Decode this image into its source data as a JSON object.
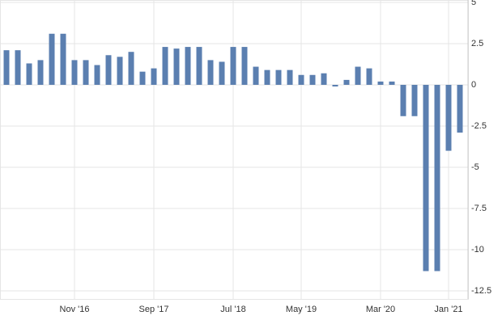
{
  "chart_data": {
    "type": "bar",
    "categories": [
      null,
      null,
      null,
      null,
      null,
      null,
      "Nov '16",
      null,
      null,
      null,
      null,
      null,
      null,
      "Sep '17",
      null,
      null,
      null,
      null,
      null,
      null,
      "Jul '18",
      null,
      null,
      null,
      null,
      null,
      "May '19",
      null,
      null,
      null,
      null,
      null,
      null,
      "Mar '20",
      null,
      null,
      null,
      null,
      null,
      "Jan '21",
      null
    ],
    "values": [
      2.1,
      2.1,
      1.3,
      1.5,
      3.1,
      3.1,
      1.5,
      1.5,
      1.2,
      1.8,
      1.7,
      2.0,
      0.8,
      1.0,
      2.3,
      2.2,
      2.3,
      2.3,
      1.5,
      1.4,
      2.3,
      2.3,
      1.1,
      0.9,
      0.9,
      0.9,
      0.6,
      0.6,
      0.7,
      -0.1,
      0.3,
      1.1,
      1.0,
      0.2,
      0.2,
      -1.9,
      -1.9,
      -11.3,
      -11.3,
      -4.0,
      -2.9
    ],
    "color": "#5b7fb0",
    "ylim": [
      -12.5,
      5
    ],
    "yticks": [
      5,
      2.5,
      0,
      -2.5,
      -5,
      -7.5,
      -10,
      -12.5
    ],
    "grid": true
  }
}
